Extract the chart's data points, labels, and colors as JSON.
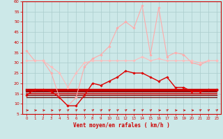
{
  "bg_color": "#cce8e8",
  "grid_color": "#aacccc",
  "xlabel": "Vent moyen/en rafales ( km/h )",
  "xlabel_color": "#cc0000",
  "tick_color": "#cc0000",
  "axis_color": "#cc0000",
  "ylim": [
    5,
    60
  ],
  "yticks": [
    5,
    10,
    15,
    20,
    25,
    30,
    35,
    40,
    45,
    50,
    55,
    60
  ],
  "xlim": [
    -0.5,
    23.5
  ],
  "xticks": [
    0,
    1,
    2,
    3,
    4,
    5,
    6,
    7,
    8,
    9,
    10,
    11,
    12,
    13,
    14,
    15,
    16,
    17,
    18,
    19,
    20,
    21,
    22,
    23
  ],
  "series": [
    {
      "y": [
        36,
        31,
        31,
        25,
        13,
        9,
        13,
        28,
        32,
        34,
        38,
        47,
        50,
        47,
        58,
        34,
        57,
        33,
        35,
        34,
        30,
        29,
        31,
        31
      ],
      "color": "#ffaaaa",
      "lw": 0.8,
      "marker": "D",
      "ms": 1.8,
      "zorder": 3
    },
    {
      "y": [
        31,
        31,
        31,
        28,
        25,
        18,
        25,
        30,
        31,
        31,
        31,
        31,
        31,
        31,
        33,
        31,
        32,
        31,
        31,
        31,
        31,
        30,
        31,
        31
      ],
      "color": "#ffbbbb",
      "lw": 0.8,
      "marker": "D",
      "ms": 1.8,
      "zorder": 3
    },
    {
      "y": [
        14,
        17,
        17,
        16,
        13,
        9,
        9,
        14,
        20,
        19,
        21,
        23,
        26,
        25,
        25,
        23,
        21,
        23,
        18,
        18,
        16,
        16,
        17,
        17
      ],
      "color": "#dd0000",
      "lw": 1.0,
      "marker": "D",
      "ms": 1.8,
      "zorder": 4
    },
    {
      "y": [
        17,
        17,
        17,
        17,
        17,
        17,
        17,
        17,
        17,
        17,
        17,
        17,
        17,
        17,
        17,
        17,
        17,
        17,
        17,
        17,
        17,
        17,
        17,
        17
      ],
      "color": "#cc0000",
      "lw": 2.5,
      "marker": null,
      "ms": 0,
      "zorder": 2
    },
    {
      "y": [
        16,
        16,
        16,
        16,
        16,
        16,
        16,
        16,
        16,
        16,
        16,
        16,
        16,
        16,
        16,
        16,
        16,
        16,
        16,
        16,
        16,
        16,
        16,
        16
      ],
      "color": "#990000",
      "lw": 1.5,
      "marker": null,
      "ms": 0,
      "zorder": 2
    },
    {
      "y": [
        15,
        15,
        15,
        15,
        15,
        15,
        15,
        15,
        15,
        15,
        15,
        15,
        15,
        15,
        15,
        15,
        15,
        15,
        15,
        15,
        15,
        15,
        15,
        15
      ],
      "color": "#cc0000",
      "lw": 1.2,
      "marker": null,
      "ms": 0,
      "zorder": 2
    },
    {
      "y": [
        14,
        14,
        14,
        14,
        14,
        14,
        14,
        14,
        14,
        14,
        14,
        14,
        14,
        14,
        14,
        14,
        14,
        14,
        14,
        14,
        14,
        14,
        14,
        14
      ],
      "color": "#880000",
      "lw": 1.0,
      "marker": null,
      "ms": 0,
      "zorder": 2
    },
    {
      "y": [
        13,
        13,
        13,
        13,
        13,
        13,
        13,
        13,
        13,
        13,
        13,
        13,
        13,
        13,
        13,
        13,
        13,
        13,
        13,
        13,
        13,
        13,
        13,
        13
      ],
      "color": "#660000",
      "lw": 0.8,
      "marker": null,
      "ms": 0,
      "zorder": 2
    }
  ],
  "wind_dirs": [
    0,
    0,
    0,
    0,
    45,
    45,
    45,
    45,
    45,
    45,
    45,
    45,
    45,
    45,
    45,
    45,
    0,
    45,
    0,
    0,
    0,
    45,
    45,
    45
  ]
}
